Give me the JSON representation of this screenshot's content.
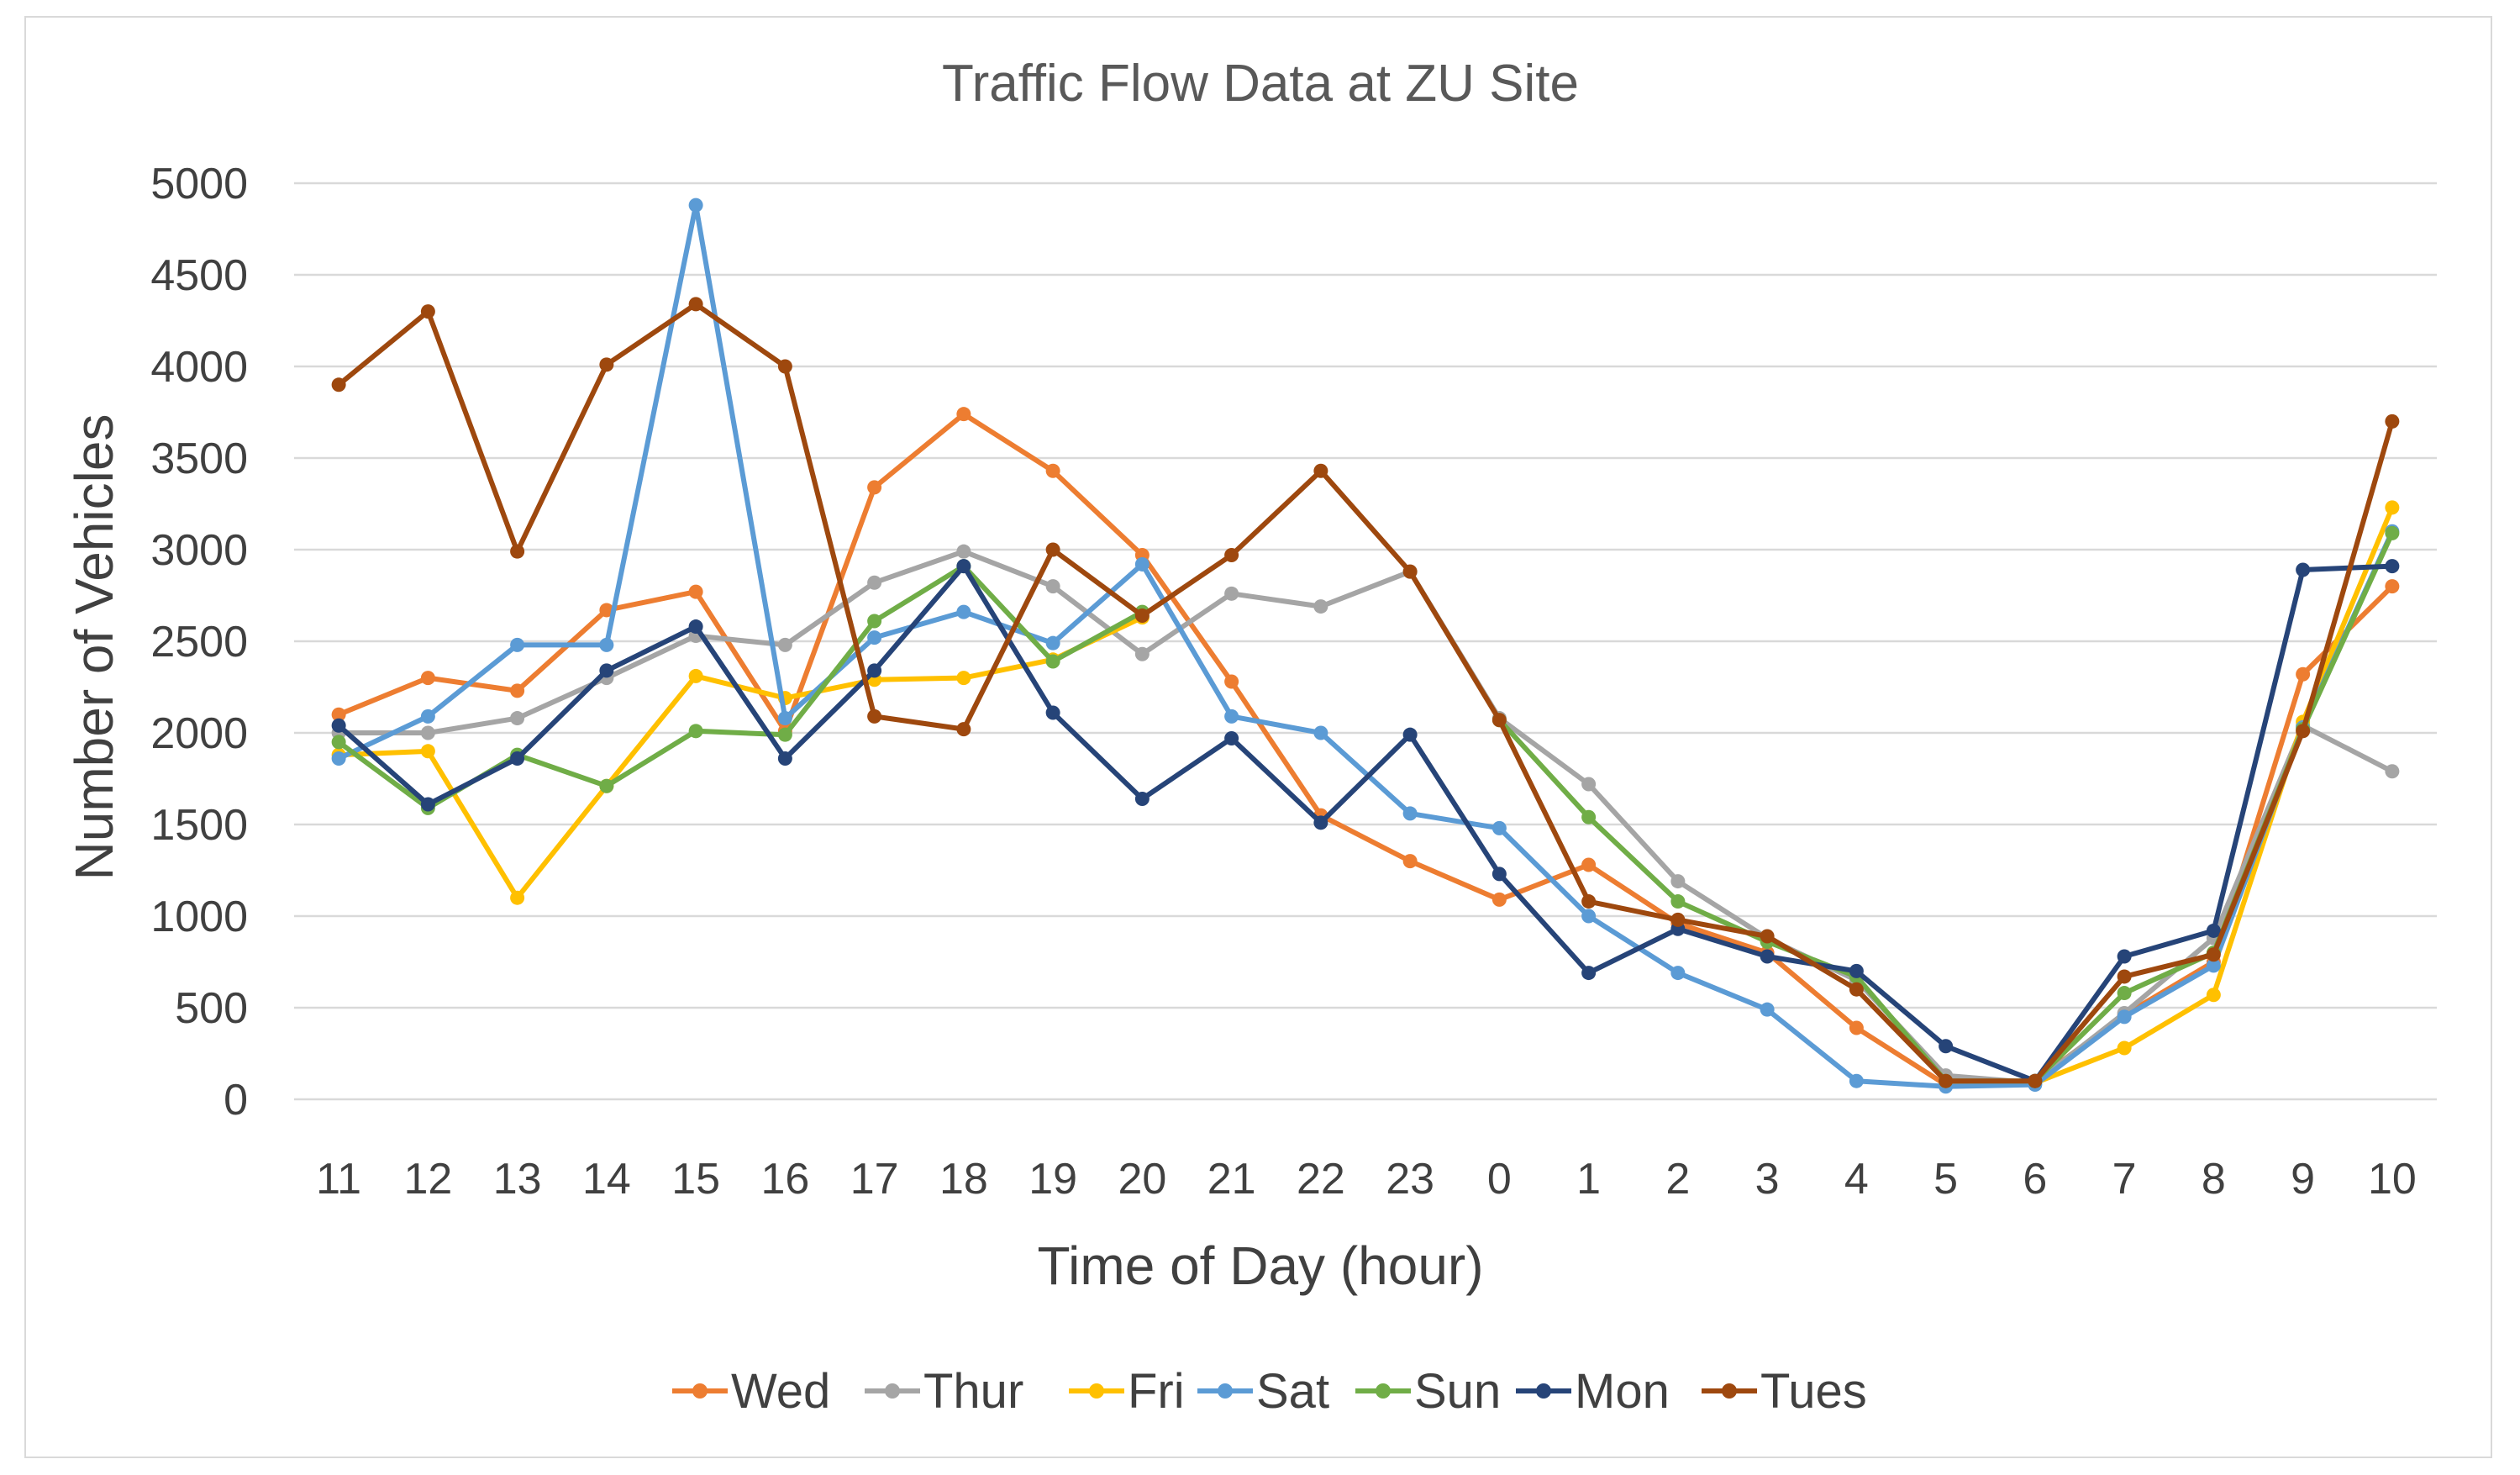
{
  "chart_data": {
    "type": "line",
    "title": "Traffic Flow Data at ZU Site",
    "xlabel": "Time of Day (hour)",
    "ylabel": "Number of Vehicles",
    "ylim": [
      0,
      5000
    ],
    "ytick_step": 500,
    "yticks": [
      "0",
      "500",
      "1000",
      "1500",
      "2000",
      "2500",
      "3000",
      "3500",
      "4000",
      "4500",
      "5000"
    ],
    "grid": true,
    "legend_position": "bottom",
    "categories": [
      "11",
      "12",
      "13",
      "14",
      "15",
      "16",
      "17",
      "18",
      "19",
      "20",
      "21",
      "22",
      "23",
      "0",
      "1",
      "2",
      "3",
      "4",
      "5",
      "6",
      "7",
      "8",
      "9",
      "10"
    ],
    "series": [
      {
        "name": "Wed",
        "color": "#ed7d31",
        "values": [
          2100,
          2300,
          2230,
          2670,
          2770,
          2010,
          3340,
          3740,
          3430,
          2970,
          2280,
          1550,
          1300,
          1090,
          1280,
          960,
          800,
          390,
          80,
          100,
          460,
          750,
          2320,
          2800
        ]
      },
      {
        "name": "Thur",
        "color": "#a5a5a5",
        "values": [
          2000,
          2000,
          2080,
          2300,
          2530,
          2480,
          2820,
          2990,
          2800,
          2430,
          2760,
          2690,
          2880,
          2080,
          1720,
          1190,
          880,
          650,
          130,
          90,
          470,
          880,
          2040,
          1790
        ]
      },
      {
        "name": "Fri",
        "color": "#ffc000",
        "values": [
          1880,
          1900,
          1100,
          1710,
          2310,
          2190,
          2290,
          2300,
          2400,
          2630,
          null,
          null,
          null,
          null,
          null,
          null,
          null,
          null,
          null,
          90,
          280,
          570,
          2060,
          3230
        ]
      },
      {
        "name": "Sat",
        "color": "#5b9bd5",
        "values": [
          1860,
          2090,
          2480,
          2480,
          4880,
          2080,
          2520,
          2660,
          2490,
          2920,
          2090,
          2000,
          1560,
          1480,
          1000,
          690,
          490,
          100,
          70,
          80,
          450,
          730,
          2030,
          3100
        ]
      },
      {
        "name": "Sun",
        "color": "#70ad47",
        "values": [
          1950,
          1590,
          1880,
          1710,
          2010,
          1990,
          2610,
          2910,
          2390,
          2660,
          null,
          null,
          null,
          2070,
          1540,
          1080,
          860,
          670,
          100,
          100,
          580,
          800,
          2020,
          3090
        ]
      },
      {
        "name": "Mon",
        "color": "#264478",
        "values": [
          2040,
          1610,
          1860,
          2340,
          2580,
          1860,
          2340,
          2910,
          2110,
          1640,
          1970,
          1510,
          1990,
          1230,
          690,
          930,
          780,
          700,
          290,
          100,
          780,
          920,
          2890,
          2910
        ]
      },
      {
        "name": "Tues",
        "color": "#9e480e",
        "values": [
          3900,
          4300,
          2990,
          4010,
          4340,
          4000,
          2090,
          2020,
          3000,
          2640,
          2970,
          3430,
          2880,
          2070,
          1080,
          980,
          890,
          600,
          100,
          100,
          670,
          790,
          2010,
          3700
        ]
      }
    ]
  }
}
